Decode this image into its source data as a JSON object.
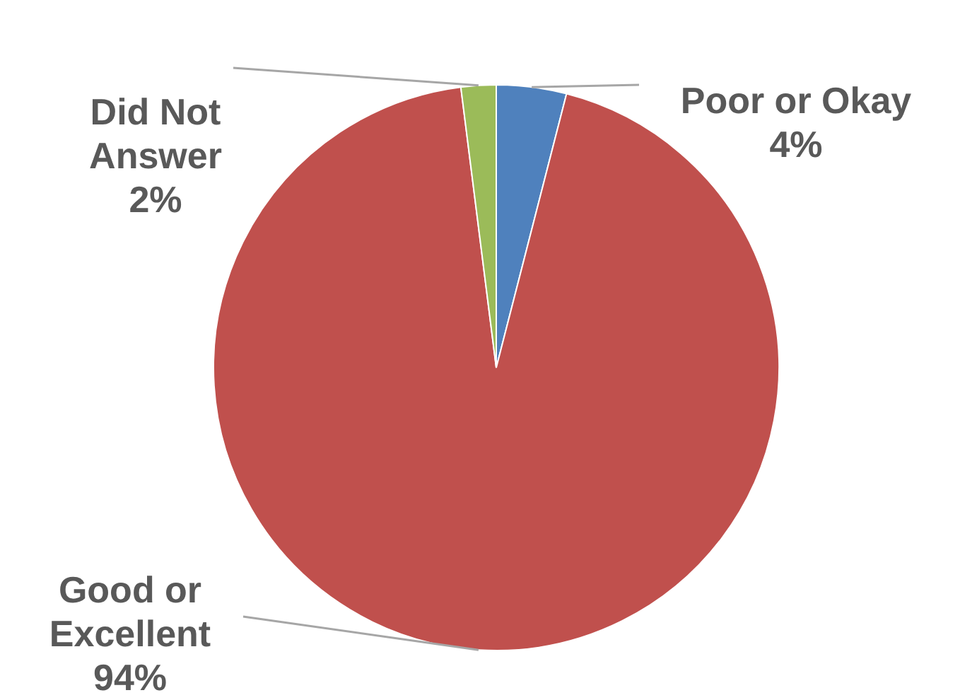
{
  "chart_data": {
    "type": "pie",
    "categories": [
      "Poor or Okay",
      "Good or Excellent",
      "Did Not Answer"
    ],
    "values": [
      4,
      94,
      2
    ],
    "colors": [
      "#4f81bd",
      "#c0504d",
      "#9bbb59"
    ],
    "value_labels": [
      "4%",
      "94%",
      "2%"
    ]
  }
}
